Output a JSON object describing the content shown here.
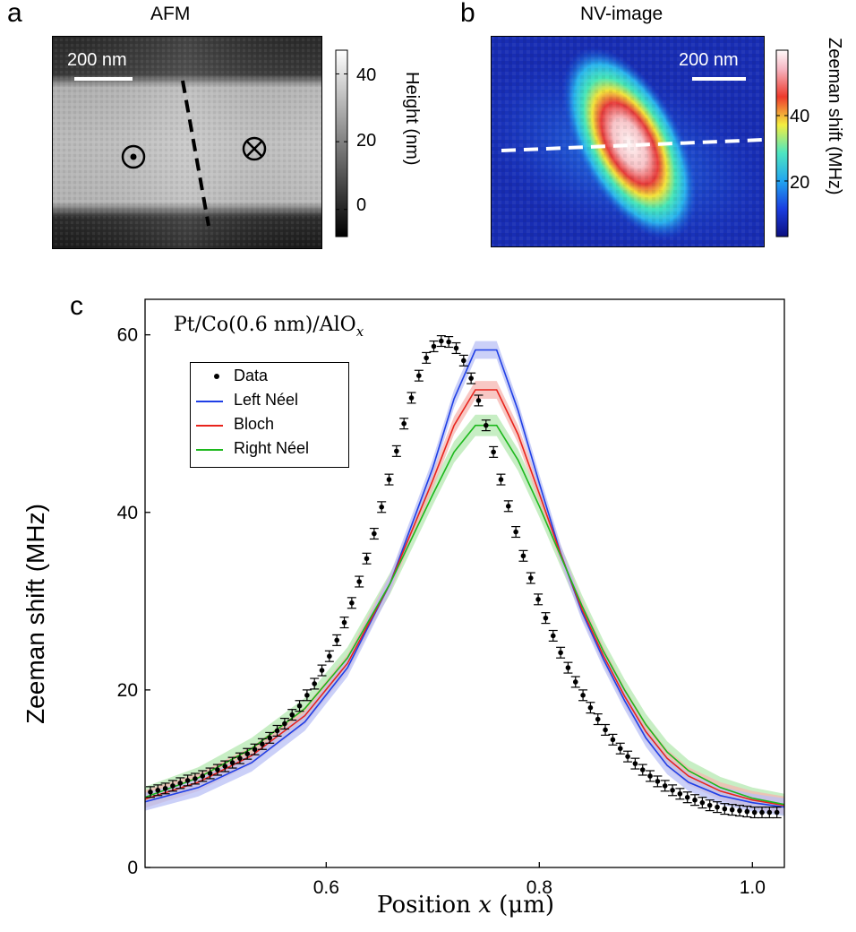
{
  "panels": {
    "a": {
      "letter": "a",
      "title": "AFM",
      "scalebar": "200 nm",
      "colorbar_label": "Height (nm)",
      "colorbar_ticks": [
        "40",
        "20",
        "0"
      ],
      "colorbar_tick_values": [
        40,
        20,
        0
      ],
      "colorbar_range": [
        -8,
        47
      ],
      "symbols": [
        "out-of-plane-dot-symbol",
        "into-plane-cross-symbol"
      ]
    },
    "b": {
      "letter": "b",
      "title": "NV-image",
      "scalebar": "200 nm",
      "colorbar_label": "Zeeman shift (MHz)",
      "colorbar_ticks": [
        "40",
        "20"
      ],
      "colorbar_tick_values": [
        40,
        20
      ],
      "colorbar_range": [
        3,
        60
      ]
    },
    "c": {
      "letter": "c",
      "annotation": "Pt/Co(0.6 nm)/AlO",
      "annotation_sub": "x",
      "xlabel_prefix": "Position ",
      "xlabel_var": "x",
      "xlabel_unit": " (μm)",
      "ylabel": "Zeeman shift (MHz)",
      "legend": [
        "Data",
        "Left Néel",
        "Bloch",
        "Right Néel"
      ]
    }
  },
  "colors": {
    "data": "#000000",
    "left_neel": "#1f3fe6",
    "bloch": "#e8241c",
    "right_neel": "#1cb81c",
    "left_neel_band": "#b9c0f5",
    "bloch_band": "#f6b6b0",
    "right_neel_band": "#b4e8b0"
  },
  "chart_data": {
    "type": "line",
    "xlim": [
      0.43,
      1.03
    ],
    "ylim": [
      0,
      64
    ],
    "x_ticks": [
      0.6,
      0.8,
      1.0
    ],
    "x_tick_labels": [
      "0.6",
      "0.8",
      "1.0"
    ],
    "y_ticks": [
      0,
      20,
      40,
      60
    ],
    "y_tick_labels": [
      "0",
      "20",
      "40",
      "60"
    ],
    "xlabel": "Position x (μm)",
    "ylabel": "Zeeman shift (MHz)",
    "grid": false,
    "legend_position": "top-left",
    "series": [
      {
        "name": "Data",
        "kind": "points_with_errorbars",
        "error": 0.6,
        "x": [
          0.435,
          0.442,
          0.449,
          0.456,
          0.463,
          0.47,
          0.477,
          0.484,
          0.491,
          0.498,
          0.505,
          0.512,
          0.519,
          0.526,
          0.533,
          0.54,
          0.547,
          0.554,
          0.561,
          0.568,
          0.575,
          0.582,
          0.589,
          0.596,
          0.603,
          0.61,
          0.617,
          0.624,
          0.631,
          0.638,
          0.645,
          0.652,
          0.659,
          0.666,
          0.673,
          0.68,
          0.687,
          0.694,
          0.701,
          0.708,
          0.715,
          0.722,
          0.729,
          0.736,
          0.743,
          0.75,
          0.757,
          0.764,
          0.771,
          0.778,
          0.785,
          0.792,
          0.799,
          0.806,
          0.813,
          0.82,
          0.827,
          0.834,
          0.841,
          0.848,
          0.855,
          0.862,
          0.869,
          0.876,
          0.883,
          0.89,
          0.897,
          0.904,
          0.911,
          0.918,
          0.925,
          0.932,
          0.939,
          0.946,
          0.953,
          0.96,
          0.967,
          0.974,
          0.981,
          0.988,
          0.995,
          1.002,
          1.009,
          1.016,
          1.023
        ],
        "y": [
          8.5,
          8.7,
          8.9,
          9.2,
          9.5,
          9.8,
          10.0,
          10.3,
          10.6,
          11.0,
          11.4,
          11.8,
          12.3,
          12.8,
          13.3,
          13.9,
          14.6,
          15.4,
          16.2,
          17.2,
          18.2,
          19.4,
          20.7,
          22.2,
          23.8,
          25.6,
          27.6,
          29.8,
          32.2,
          34.8,
          37.6,
          40.6,
          43.7,
          46.9,
          50.0,
          52.9,
          55.4,
          57.4,
          58.7,
          59.3,
          59.2,
          58.5,
          57.1,
          55.1,
          52.6,
          49.8,
          46.8,
          43.7,
          40.7,
          37.8,
          35.1,
          32.6,
          30.2,
          28.1,
          26.1,
          24.2,
          22.5,
          20.9,
          19.4,
          18.0,
          16.7,
          15.5,
          14.4,
          13.4,
          12.5,
          11.7,
          11.0,
          10.3,
          9.7,
          9.2,
          8.7,
          8.3,
          7.9,
          7.6,
          7.3,
          7.0,
          6.8,
          6.6,
          6.5,
          6.4,
          6.3,
          6.2,
          6.2,
          6.2,
          6.2
        ]
      },
      {
        "name": "Left Néel",
        "band_halfwidth": 1.0,
        "x": [
          0.43,
          0.48,
          0.53,
          0.58,
          0.62,
          0.66,
          0.7,
          0.72,
          0.74,
          0.76,
          0.78,
          0.8,
          0.82,
          0.84,
          0.86,
          0.88,
          0.9,
          0.92,
          0.94,
          0.97,
          1.0,
          1.03
        ],
        "y": [
          7.4,
          9.0,
          11.8,
          16.4,
          22.5,
          32.0,
          45.0,
          52.8,
          58.3,
          58.3,
          51.5,
          43.3,
          35.4,
          28.8,
          23.5,
          18.8,
          14.6,
          11.5,
          9.6,
          8.1,
          7.3,
          6.8
        ]
      },
      {
        "name": "Bloch",
        "band_halfwidth": 1.0,
        "x": [
          0.43,
          0.48,
          0.53,
          0.58,
          0.62,
          0.66,
          0.7,
          0.72,
          0.74,
          0.76,
          0.78,
          0.8,
          0.82,
          0.84,
          0.86,
          0.88,
          0.9,
          0.92,
          0.94,
          0.97,
          1.0,
          1.03
        ],
        "y": [
          7.7,
          9.6,
          12.6,
          17.1,
          23.0,
          32.0,
          43.6,
          49.8,
          53.8,
          53.8,
          48.8,
          42.1,
          35.3,
          29.1,
          23.9,
          19.3,
          15.3,
          12.3,
          10.3,
          8.6,
          7.6,
          7.0
        ]
      },
      {
        "name": "Right Néel",
        "band_halfwidth": 1.2,
        "x": [
          0.43,
          0.48,
          0.53,
          0.58,
          0.62,
          0.66,
          0.7,
          0.72,
          0.74,
          0.76,
          0.78,
          0.8,
          0.82,
          0.84,
          0.86,
          0.88,
          0.9,
          0.92,
          0.94,
          0.97,
          1.0,
          1.03
        ],
        "y": [
          7.9,
          10.1,
          13.4,
          17.9,
          23.6,
          32.0,
          42.0,
          46.8,
          49.8,
          49.8,
          45.9,
          40.7,
          35.1,
          29.5,
          24.4,
          20.0,
          16.1,
          13.0,
          10.9,
          9.0,
          7.8,
          7.1
        ]
      }
    ]
  }
}
